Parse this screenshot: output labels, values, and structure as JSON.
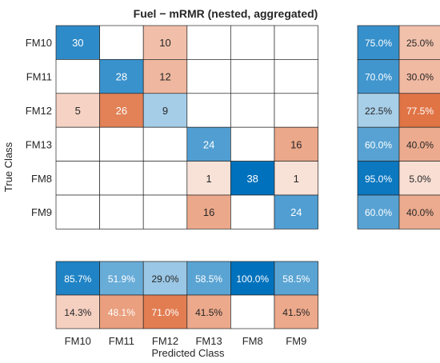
{
  "chart_data": {
    "type": "heatmap",
    "title": "Fuel − mRMR (nested, aggregated)",
    "xlabel": "Predicted Class",
    "ylabel": "True Class",
    "classes": [
      "FM10",
      "FM11",
      "FM12",
      "FM13",
      "FM8",
      "FM9"
    ],
    "matrix": [
      [
        30,
        null,
        10,
        null,
        null,
        null
      ],
      [
        null,
        28,
        12,
        null,
        null,
        null
      ],
      [
        5,
        26,
        9,
        null,
        null,
        null
      ],
      [
        null,
        null,
        null,
        24,
        null,
        16
      ],
      [
        null,
        null,
        null,
        1,
        38,
        1
      ],
      [
        null,
        null,
        null,
        16,
        null,
        24
      ]
    ],
    "row_summary": [
      [
        "75.0%",
        "25.0%"
      ],
      [
        "70.0%",
        "30.0%"
      ],
      [
        "22.5%",
        "77.5%"
      ],
      [
        "60.0%",
        "40.0%"
      ],
      [
        "95.0%",
        "5.0%"
      ],
      [
        "60.0%",
        "40.0%"
      ]
    ],
    "column_summary": {
      "correct": [
        "85.7%",
        "51.9%",
        "29.0%",
        "58.5%",
        "100.0%",
        "58.5%"
      ],
      "incorrect": [
        "14.3%",
        "48.1%",
        "71.0%",
        "41.5%",
        "",
        "41.5%"
      ]
    },
    "colors": {
      "blue_strong": "#0072bd",
      "orange_strong": "#d95319",
      "gridline": "#262626"
    }
  }
}
